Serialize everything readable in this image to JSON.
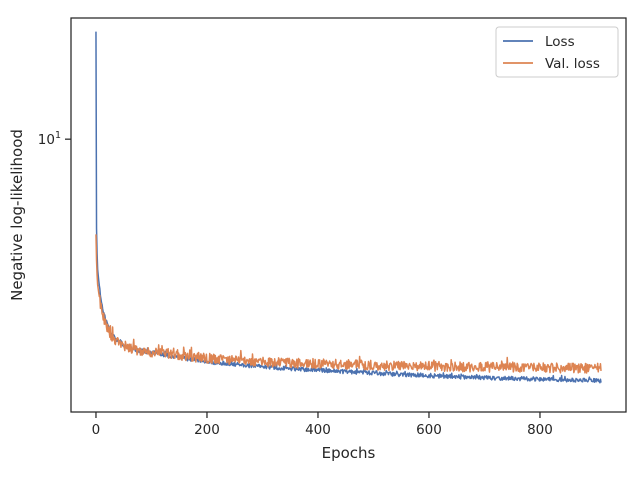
{
  "chart_data": {
    "type": "line",
    "xlabel": "Epochs",
    "ylabel": "Negative log-likelihood",
    "xlim": [
      -45,
      955
    ],
    "ylim": [
      2.1,
      20
    ],
    "yscale": "log",
    "x_ticks": [
      0,
      200,
      400,
      600,
      800
    ],
    "y_ticks": [
      {
        "value": 10,
        "base": "10",
        "exp": "1"
      }
    ],
    "grid": false,
    "legend_position": "top-right",
    "colors": {
      "Loss": "#4c72b0",
      "Val. loss": "#dd8452",
      "axis": "#262626"
    },
    "series": [
      {
        "name": "Loss",
        "x": [
          0,
          1,
          2,
          3,
          5,
          8,
          12,
          18,
          25,
          35,
          50,
          70,
          100,
          150,
          200,
          250,
          300,
          350,
          400,
          450,
          500,
          550,
          600,
          650,
          700,
          750,
          800,
          850,
          900,
          910
        ],
        "y": [
          18.5,
          6.0,
          5.2,
          4.75,
          4.45,
          4.1,
          3.8,
          3.55,
          3.35,
          3.2,
          3.08,
          3.0,
          2.95,
          2.87,
          2.8,
          2.76,
          2.72,
          2.69,
          2.67,
          2.645,
          2.625,
          2.6,
          2.585,
          2.57,
          2.555,
          2.545,
          2.535,
          2.52,
          2.51,
          2.51
        ]
      },
      {
        "name": "Val. loss",
        "x": [
          0,
          1,
          2,
          3,
          5,
          8,
          12,
          18,
          25,
          35,
          50,
          70,
          100,
          150,
          200,
          250,
          300,
          350,
          400,
          450,
          500,
          550,
          600,
          650,
          700,
          750,
          800,
          850,
          900,
          910
        ],
        "y": [
          5.8,
          5.0,
          4.6,
          4.35,
          4.15,
          3.9,
          3.65,
          3.45,
          3.28,
          3.16,
          3.06,
          3.0,
          2.96,
          2.9,
          2.86,
          2.83,
          2.8,
          2.78,
          2.77,
          2.76,
          2.745,
          2.735,
          2.73,
          2.72,
          2.715,
          2.71,
          2.705,
          2.7,
          2.7,
          2.7
        ]
      }
    ]
  }
}
